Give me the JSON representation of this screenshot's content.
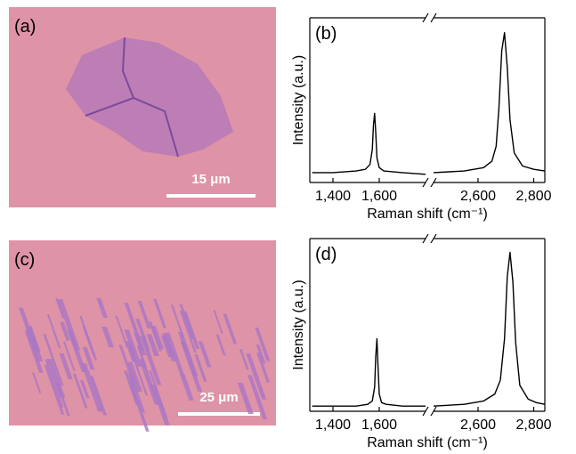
{
  "panels": {
    "a": {
      "label": "(a)",
      "scale_bar": "15 μm"
    },
    "c": {
      "label": "(c)",
      "scale_bar": "25 μm"
    }
  },
  "chart_data": [
    {
      "type": "line",
      "panel_label": "(b)",
      "y_label": "Intensity (a.u.)",
      "x_label": "Raman shift (cm⁻¹)",
      "xlim": [
        1300,
        2840
      ],
      "xbreak": [
        1800,
        2440
      ],
      "ylim": [
        0,
        100
      ],
      "xticks": [
        {
          "value": 1400,
          "label": "1,400"
        },
        {
          "value": 1600,
          "label": "1,600"
        },
        {
          "value": 2600,
          "label": "2,600"
        },
        {
          "value": 2800,
          "label": "2,800"
        }
      ],
      "x": [
        1310,
        1400,
        1500,
        1540,
        1560,
        1570,
        1575,
        1580,
        1585,
        1590,
        1600,
        1620,
        1700,
        1800,
        2000,
        2440,
        2550,
        2620,
        2650,
        2665,
        2675,
        2685,
        2695,
        2705,
        2715,
        2730,
        2760,
        2800,
        2840
      ],
      "series": [
        {
          "color": "#000000",
          "values": [
            6,
            6,
            7,
            8,
            11,
            20,
            35,
            42,
            30,
            15,
            9,
            7,
            6,
            5,
            null,
            6,
            7,
            9,
            13,
            22,
            45,
            80,
            91,
            70,
            38,
            18,
            10,
            8,
            7
          ]
        }
      ]
    },
    {
      "type": "line",
      "panel_label": "(d)",
      "y_label": "Intensity (a.u.)",
      "x_label": "Raman shift (cm⁻¹)",
      "xlim": [
        1300,
        2840
      ],
      "xbreak": [
        1800,
        2440
      ],
      "ylim": [
        0,
        100
      ],
      "xticks": [
        {
          "value": 1400,
          "label": "1,400"
        },
        {
          "value": 1600,
          "label": "1,600"
        },
        {
          "value": 2600,
          "label": "2,600"
        },
        {
          "value": 2800,
          "label": "2,800"
        }
      ],
      "x": [
        1310,
        1400,
        1500,
        1550,
        1570,
        1580,
        1585,
        1590,
        1595,
        1600,
        1610,
        1630,
        1700,
        1800,
        2000,
        2440,
        2550,
        2620,
        2660,
        2680,
        2695,
        2705,
        2715,
        2725,
        2735,
        2750,
        2780,
        2810,
        2840
      ],
      "series": [
        {
          "color": "#000000",
          "values": [
            3,
            3,
            3,
            4,
            6,
            14,
            32,
            42,
            25,
            10,
            5,
            4,
            3,
            3,
            null,
            3,
            4,
            6,
            10,
            18,
            42,
            78,
            92,
            75,
            40,
            15,
            7,
            5,
            4
          ]
        }
      ]
    }
  ]
}
